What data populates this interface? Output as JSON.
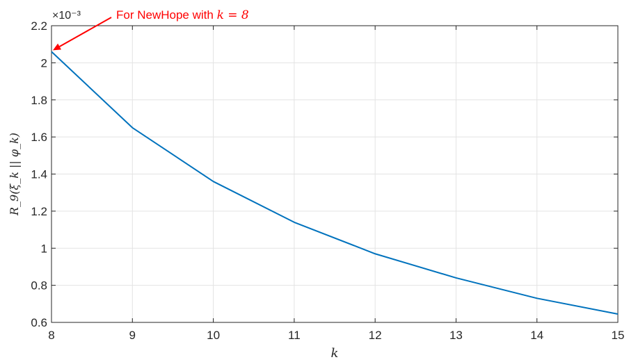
{
  "chart_data": {
    "type": "line",
    "title": "",
    "xlabel": "k",
    "ylabel": "R_9(ξ_k || φ_k)",
    "x": [
      8,
      9,
      10,
      11,
      12,
      13,
      14,
      15
    ],
    "series": [
      {
        "values": [
          2.06,
          1.65,
          1.36,
          1.14,
          0.97,
          0.84,
          0.73,
          0.645
        ]
      }
    ],
    "xlim": [
      8,
      15
    ],
    "ylim": [
      0.6,
      2.2
    ],
    "xticks": [
      "8",
      "9",
      "10",
      "11",
      "12",
      "13",
      "14",
      "15"
    ],
    "yticks": [
      "0.6",
      "0.8",
      "1",
      "1.2",
      "1.4",
      "1.6",
      "1.8",
      "2",
      "2.2"
    ],
    "y_exponent": "×10⁻³",
    "grid": true,
    "line_color": "#0072BD",
    "annotation": {
      "text": "For NewHope with k = 8",
      "prefix": "For NewHope with ",
      "math": "k = 8",
      "color": "#ff0000",
      "points_to": {
        "x": 8,
        "y": 2.06
      }
    }
  }
}
